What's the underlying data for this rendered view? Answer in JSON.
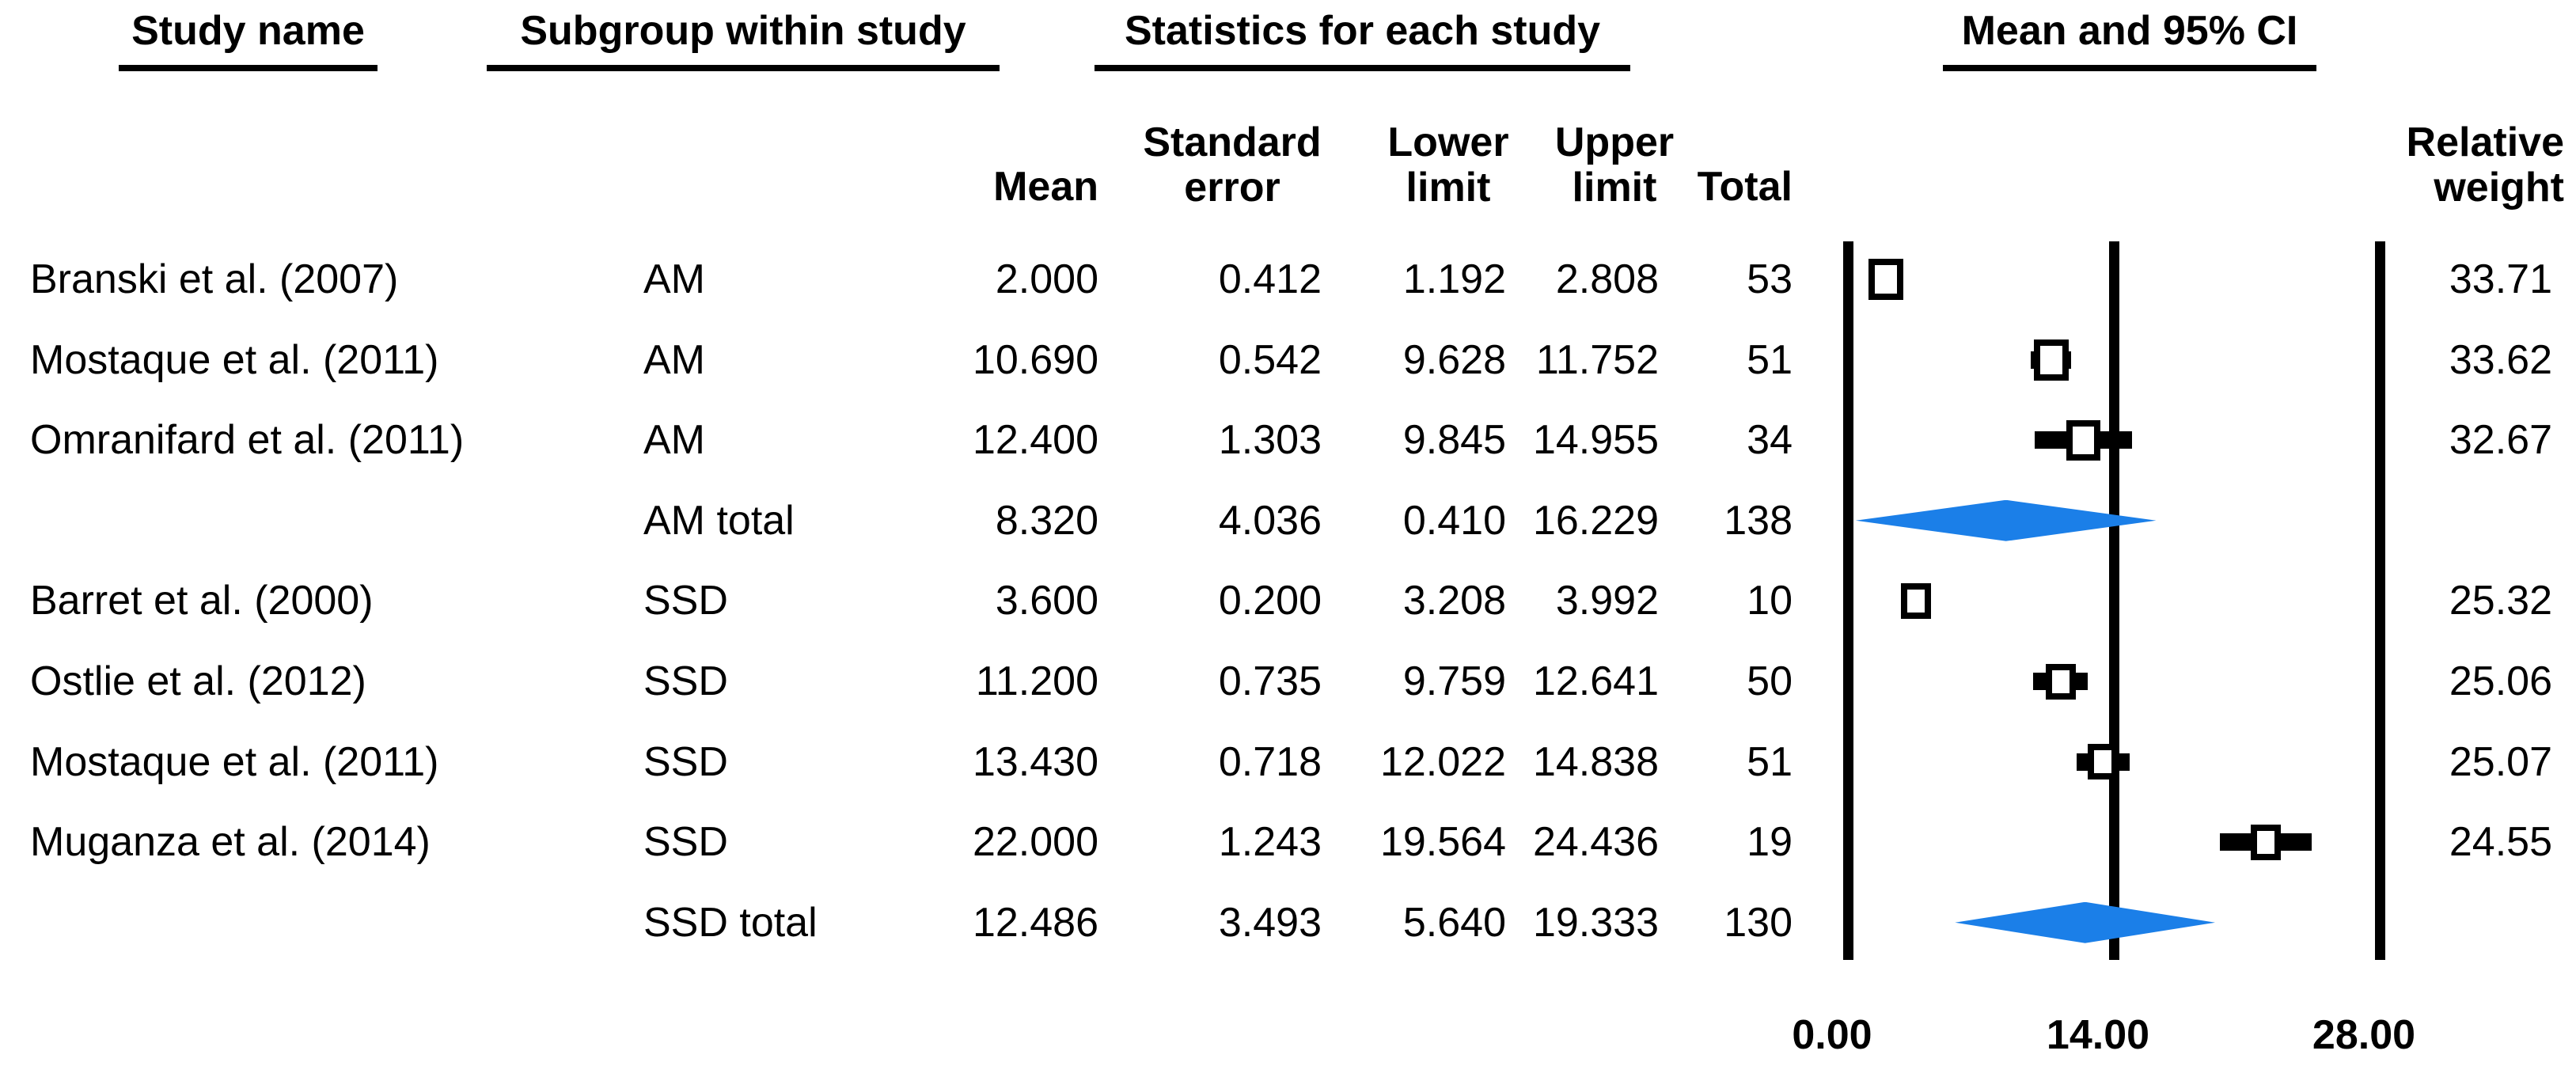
{
  "group_headers": {
    "study_name": "Study name",
    "subgroup": "Subgroup within study",
    "statistics": "Statistics for each study",
    "mean_ci": "Mean and 95% CI"
  },
  "column_headers": {
    "mean": "Mean",
    "standard_error": [
      "Standard",
      "error"
    ],
    "lower_limit": [
      "Lower",
      "limit"
    ],
    "upper_limit": [
      "Upper",
      "limit"
    ],
    "total": "Total",
    "relative_weight": [
      "Relative",
      "weight"
    ]
  },
  "rows": [
    {
      "kind": "study",
      "study": "Branski et al. (2007)",
      "subgroup": "AM",
      "mean_s": "2.000",
      "se_s": "0.412",
      "lower_s": "1.192",
      "upper_s": "2.808",
      "total_s": "53",
      "weight_s": "33.71",
      "mean": 2.0,
      "lower": 1.192,
      "upper": 2.808,
      "weight": 33.71
    },
    {
      "kind": "study",
      "study": "Mostaque et al. (2011)",
      "subgroup": "AM",
      "mean_s": "10.690",
      "se_s": "0.542",
      "lower_s": "9.628",
      "upper_s": "11.752",
      "total_s": "51",
      "weight_s": "33.62",
      "mean": 10.69,
      "lower": 9.628,
      "upper": 11.752,
      "weight": 33.62
    },
    {
      "kind": "study",
      "study": "Omranifard et al. (2011)",
      "subgroup": "AM",
      "mean_s": "12.400",
      "se_s": "1.303",
      "lower_s": "9.845",
      "upper_s": "14.955",
      "total_s": "34",
      "weight_s": "32.67",
      "mean": 12.4,
      "lower": 9.845,
      "upper": 14.955,
      "weight": 32.67
    },
    {
      "kind": "summary",
      "study": "",
      "subgroup": "AM total",
      "mean_s": "8.320",
      "se_s": "4.036",
      "lower_s": "0.410",
      "upper_s": "16.229",
      "total_s": "138",
      "weight_s": "",
      "mean": 8.32,
      "lower": 0.41,
      "upper": 16.229,
      "weight": null
    },
    {
      "kind": "study",
      "study": "Barret et al. (2000)",
      "subgroup": "SSD",
      "mean_s": "3.600",
      "se_s": "0.200",
      "lower_s": "3.208",
      "upper_s": "3.992",
      "total_s": "10",
      "weight_s": "25.32",
      "mean": 3.6,
      "lower": 3.208,
      "upper": 3.992,
      "weight": 25.32
    },
    {
      "kind": "study",
      "study": "Ostlie et al. (2012)",
      "subgroup": "SSD",
      "mean_s": "11.200",
      "se_s": "0.735",
      "lower_s": "9.759",
      "upper_s": "12.641",
      "total_s": "50",
      "weight_s": "25.06",
      "mean": 11.2,
      "lower": 9.759,
      "upper": 12.641,
      "weight": 25.06
    },
    {
      "kind": "study",
      "study": "Mostaque et al. (2011)",
      "subgroup": "SSD",
      "mean_s": "13.430",
      "se_s": "0.718",
      "lower_s": "12.022",
      "upper_s": "14.838",
      "total_s": "51",
      "weight_s": "25.07",
      "mean": 13.43,
      "lower": 12.022,
      "upper": 14.838,
      "weight": 25.07
    },
    {
      "kind": "study",
      "study": "Muganza et al. (2014)",
      "subgroup": "SSD",
      "mean_s": "22.000",
      "se_s": "1.243",
      "lower_s": "19.564",
      "upper_s": "24.436",
      "total_s": "19",
      "weight_s": "24.55",
      "mean": 22.0,
      "lower": 19.564,
      "upper": 24.436,
      "weight": 24.55
    },
    {
      "kind": "summary",
      "study": "",
      "subgroup": "SSD total",
      "mean_s": "12.486",
      "se_s": "3.493",
      "lower_s": "5.640",
      "upper_s": "19.333",
      "total_s": "130",
      "weight_s": "",
      "mean": 12.486,
      "lower": 5.64,
      "upper": 19.333,
      "weight": null
    }
  ],
  "plot": {
    "ticks": [
      {
        "value": 0,
        "label": "0.00"
      },
      {
        "value": 14,
        "label": "14.00"
      },
      {
        "value": 28,
        "label": "28.00"
      }
    ],
    "diamond_color": "#1b7fe8",
    "line_color": "#000000"
  },
  "chart_data": {
    "type": "scatter",
    "subtype": "forest-plot",
    "title": "Mean and 95% CI",
    "column_titles": [
      "Study name",
      "Subgroup within study",
      "Mean",
      "Standard error",
      "Lower limit",
      "Upper limit",
      "Total",
      "Relative weight"
    ],
    "xlabel": "Mean",
    "xlim": [
      0,
      28
    ],
    "xticks": [
      0.0,
      14.0,
      28.0
    ],
    "series": [
      {
        "name": "Branski et al. (2007)",
        "subgroup": "AM",
        "mean": 2.0,
        "se": 0.412,
        "ci": [
          1.192,
          2.808
        ],
        "total": 53,
        "relative_weight": 33.71,
        "marker": "square"
      },
      {
        "name": "Mostaque et al. (2011)",
        "subgroup": "AM",
        "mean": 10.69,
        "se": 0.542,
        "ci": [
          9.628,
          11.752
        ],
        "total": 51,
        "relative_weight": 33.62,
        "marker": "square"
      },
      {
        "name": "Omranifard et al. (2011)",
        "subgroup": "AM",
        "mean": 12.4,
        "se": 1.303,
        "ci": [
          9.845,
          14.955
        ],
        "total": 34,
        "relative_weight": 32.67,
        "marker": "square"
      },
      {
        "name": "AM total",
        "subgroup": "AM",
        "mean": 8.32,
        "se": 4.036,
        "ci": [
          0.41,
          16.229
        ],
        "total": 138,
        "relative_weight": null,
        "marker": "diamond"
      },
      {
        "name": "Barret et al. (2000)",
        "subgroup": "SSD",
        "mean": 3.6,
        "se": 0.2,
        "ci": [
          3.208,
          3.992
        ],
        "total": 10,
        "relative_weight": 25.32,
        "marker": "square"
      },
      {
        "name": "Ostlie et al. (2012)",
        "subgroup": "SSD",
        "mean": 11.2,
        "se": 0.735,
        "ci": [
          9.759,
          12.641
        ],
        "total": 50,
        "relative_weight": 25.06,
        "marker": "square"
      },
      {
        "name": "Mostaque et al. (2011)",
        "subgroup": "SSD",
        "mean": 13.43,
        "se": 0.718,
        "ci": [
          12.022,
          14.838
        ],
        "total": 51,
        "relative_weight": 25.07,
        "marker": "square"
      },
      {
        "name": "Muganza et al. (2014)",
        "subgroup": "SSD",
        "mean": 22.0,
        "se": 1.243,
        "ci": [
          19.564,
          24.436
        ],
        "total": 19,
        "relative_weight": 24.55,
        "marker": "square"
      },
      {
        "name": "SSD total",
        "subgroup": "SSD",
        "mean": 12.486,
        "se": 3.493,
        "ci": [
          5.64,
          19.333
        ],
        "total": 130,
        "relative_weight": null,
        "marker": "diamond"
      }
    ],
    "legend": false,
    "grid": false,
    "reference_lines_x": [
      0,
      14,
      28
    ],
    "summary_diamond_color": "#1b7fe8"
  }
}
